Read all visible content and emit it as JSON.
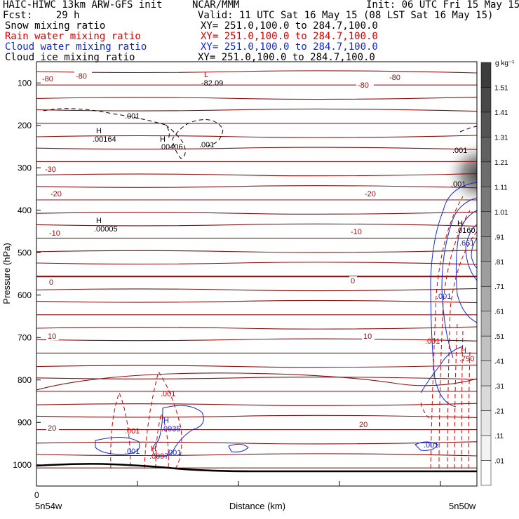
{
  "header": {
    "model": "HAIC-HIWC 13km ARW-GFS init",
    "org": "NCAR/MMM",
    "init": "Init: 06 UTC Fri 15 May 15",
    "fcst": "Fcst:    29 h",
    "valid": "Valid: 11 UTC Sat 16 May 15 (08 LST Sat 16 May 15)",
    "fields": [
      {
        "name": "Snow mixing ratio",
        "xy": "XY= 251.0,100.0 to 284.7,100.0",
        "color": "#000000"
      },
      {
        "name": "Rain water mixing ratio",
        "xy": "XY= 251.0,100.0 to 284.7,100.0",
        "color": "#d40000"
      },
      {
        "name": "Cloud water mixing ratio",
        "xy": "XY= 251.0,100.0 to 284.7,100.0",
        "color": "#1028d0"
      },
      {
        "name": "Cloud ice mixing ratio",
        "xy": "XY= 251.0,100.0 to 284.7,100.0",
        "color": "#000000"
      }
    ]
  },
  "chart_data": {
    "type": "contour",
    "ylabel": "Pressure (hPa)",
    "xlabel": "Distance (km)",
    "yticks": [
      100,
      200,
      300,
      400,
      500,
      600,
      700,
      800,
      900,
      1000
    ],
    "ylim": [
      1050,
      50
    ],
    "x_start_label": "0",
    "x_left_label": "5n54w",
    "x_right_label": "5n50w",
    "colorbar": {
      "unit": "g kg⁻¹",
      "levels": [
        "1.51",
        "1.41",
        "1.31",
        "1.21",
        "1.11",
        "1.01",
        ".91",
        ".81",
        ".71",
        ".61",
        ".51",
        ".41",
        ".31",
        ".21",
        ".11",
        ".01"
      ]
    },
    "temperature_labels": [
      "-80",
      "-80",
      "-80",
      "-80",
      "-30",
      "-20",
      "-20",
      "-10",
      "-10",
      "0",
      "0",
      "10",
      "10",
      "20",
      "20"
    ],
    "field_labels": [
      {
        "text": "L",
        "color": "#d40000"
      },
      {
        "text": "-82.09",
        "color": "#000000"
      },
      {
        "text": ".001",
        "color": "#000000"
      },
      {
        "text": "H",
        "color": "#000000"
      },
      {
        "text": ".00164",
        "color": "#000000"
      },
      {
        "text": "H",
        "color": "#000000"
      },
      {
        "text": ".00406",
        "color": "#000000"
      },
      {
        "text": ".001",
        "color": "#000000"
      },
      {
        "text": ".001",
        "color": "#000000"
      },
      {
        "text": ".001",
        "color": "#000000"
      },
      {
        "text": "H",
        "color": "#000000"
      },
      {
        "text": ".00005",
        "color": "#000000"
      },
      {
        "text": "H",
        "color": "#000000"
      },
      {
        "text": ".0160",
        "color": "#000000"
      },
      {
        "text": ".661",
        "color": "#1028d0"
      },
      {
        "text": ".001",
        "color": "#1028d0"
      },
      {
        "text": ".001",
        "color": "#d40000"
      },
      {
        "text": "H",
        "color": "#d40000"
      },
      {
        "text": ".790",
        "color": "#d40000"
      },
      {
        "text": ".001",
        "color": "#d40000"
      },
      {
        "text": "H",
        "color": "#1028d0"
      },
      {
        "text": ".0935",
        "color": "#1028d0"
      },
      {
        "text": ".001",
        "color": "#d40000"
      },
      {
        "text": ".001",
        "color": "#1028d0"
      },
      {
        "text": "H",
        "color": "#d40000"
      },
      {
        "text": ".0097",
        "color": "#d40000"
      },
      {
        "text": ".001",
        "color": "#1028d0"
      },
      {
        "text": ".001",
        "color": "#1028d0"
      }
    ]
  }
}
